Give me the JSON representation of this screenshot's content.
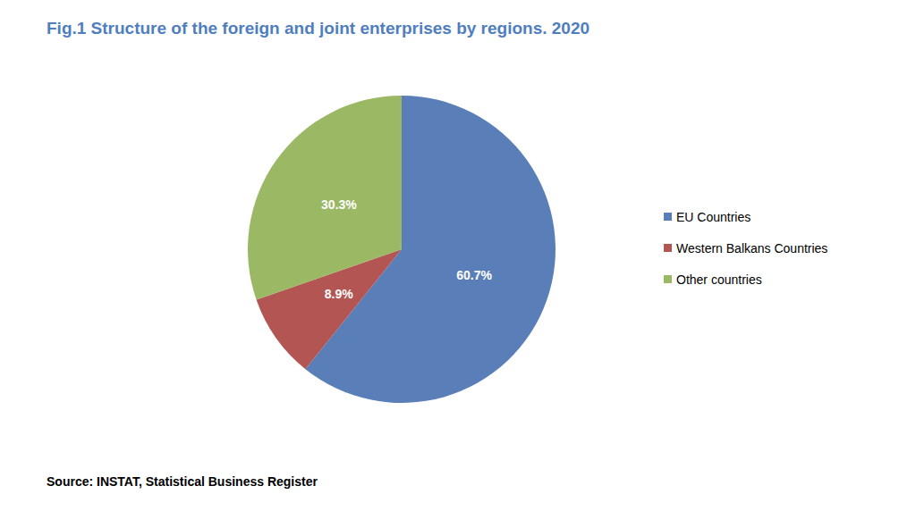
{
  "chart_data": {
    "type": "pie",
    "title": "Fig.1 Structure of the foreign and joint enterprises by regions. 2020",
    "categories": [
      "EU Countries",
      "Western Balkans Countries",
      "Other countries"
    ],
    "values": [
      60.7,
      8.9,
      30.3
    ],
    "value_labels": [
      "60.7%",
      "8.9%",
      "30.3%"
    ],
    "colors": [
      "#5a7fb8",
      "#b35552",
      "#9bb865"
    ],
    "data_labels": true,
    "legend": "right",
    "source": "Source: INSTAT, Statistical Business Register"
  }
}
